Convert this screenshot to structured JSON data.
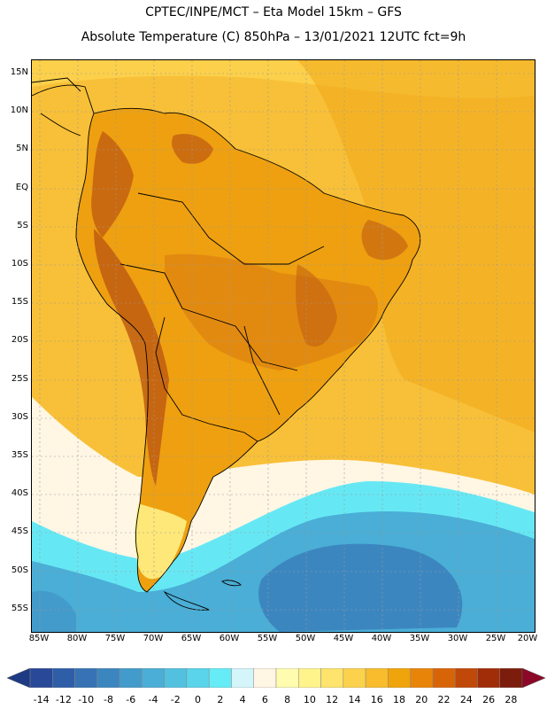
{
  "header": {
    "line1": "CPTEC/INPE/MCT –  Eta Model 15km – GFS",
    "line2": "Absolute Temperature (C) 850hPa – 13/01/2021 12UTC fct=9h"
  },
  "map": {
    "lat_labels": [
      "15N",
      "10N",
      "5N",
      "EQ",
      "5S",
      "10S",
      "15S",
      "20S",
      "25S",
      "30S",
      "35S",
      "40S",
      "45S",
      "50S",
      "55S"
    ],
    "lon_labels": [
      "85W",
      "80W",
      "75W",
      "70W",
      "65W",
      "60W",
      "55W",
      "50W",
      "45W",
      "40W",
      "35W",
      "30W",
      "25W",
      "20W"
    ]
  },
  "colorbar": {
    "labels": [
      "-14",
      "-12",
      "-10",
      "-8",
      "-6",
      "-4",
      "-2",
      "0",
      "2",
      "4",
      "6",
      "8",
      "10",
      "12",
      "14",
      "16",
      "18",
      "20",
      "22",
      "24",
      "26",
      "28"
    ],
    "colors": [
      "#2a4898",
      "#2f5ea8",
      "#3672b4",
      "#3c86c0",
      "#439bcb",
      "#4aaed6",
      "#52c1e0",
      "#5ad4ea",
      "#66ecf6",
      "#d4f6fb",
      "#fff6e4",
      "#fffcb0",
      "#fff48c",
      "#fee46c",
      "#fcd24c",
      "#f8bc2c",
      "#f0a40c",
      "#e88408",
      "#d86408",
      "#c04808",
      "#a02c08",
      "#7c1c0c"
    ],
    "low_color": "#1e3a84",
    "high_color": "#8c0828"
  },
  "palette": {
    "ocean_warm": "#f8c038",
    "ocean_hot": "#f0a818",
    "land_warm": "#eea010",
    "land_hot": "#d87810",
    "land_hotter": "#c05c10",
    "cool_pale": "#fff6e4",
    "cool_cyan": "#66e8f4",
    "cold_blue": "#4aaed6",
    "colder_blue": "#3c86c0",
    "coast_line": "#000000",
    "grid_line": "#999999"
  }
}
